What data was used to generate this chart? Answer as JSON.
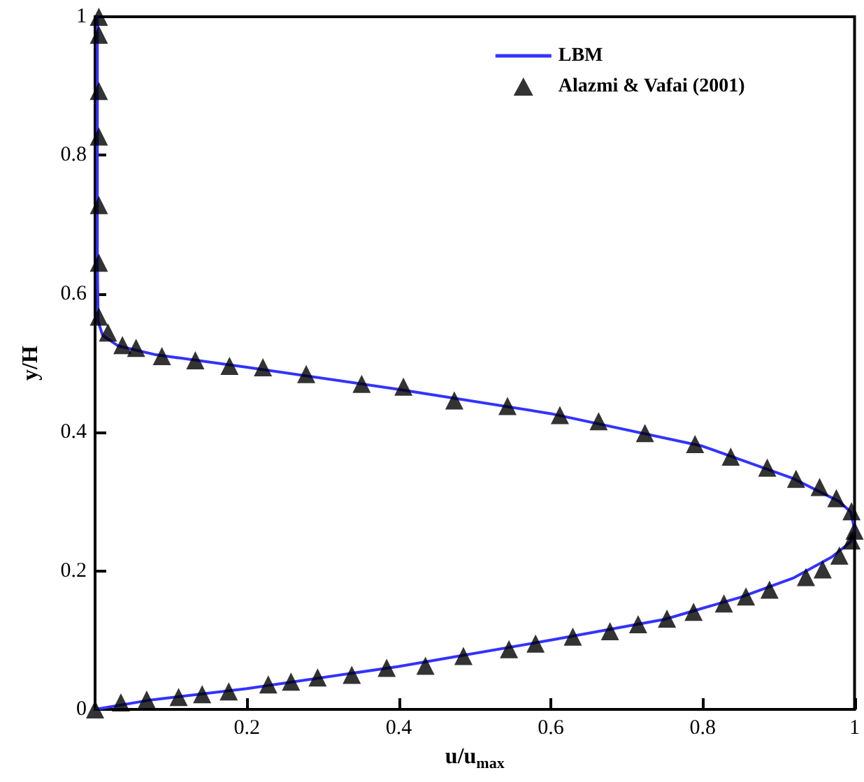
{
  "chart_data": {
    "type": "line",
    "xlabel": "u/u$_{max}$",
    "ylabel": "y/H",
    "xlim": [
      0,
      1
    ],
    "ylim": [
      0,
      1
    ],
    "xticks": [
      {
        "value": 0,
        "label": null
      },
      0.2,
      0.4,
      0.6,
      0.8,
      1
    ],
    "yticks": [
      0,
      0.2,
      0.4,
      0.6,
      0.8,
      1
    ],
    "grid": false,
    "legend": "top right",
    "series": [
      {
        "name": "LBM",
        "color": "#3333ff",
        "line_style": "solid",
        "marker": "none",
        "x": [
          0,
          0.07,
          0.2,
          0.4,
          0.6,
          0.75,
          0.85,
          0.92,
          0.97,
          0.995,
          1.0,
          0.995,
          0.98,
          0.92,
          0.8,
          0.6,
          0.4,
          0.2,
          0.08,
          0.03,
          0.01,
          0.004,
          0.003,
          0.003,
          0.003
        ],
        "values": [
          0,
          0.013,
          0.03,
          0.062,
          0.1,
          0.13,
          0.162,
          0.19,
          0.22,
          0.242,
          0.26,
          0.285,
          0.3,
          0.333,
          0.38,
          0.427,
          0.462,
          0.494,
          0.512,
          0.525,
          0.54,
          0.56,
          0.65,
          0.8,
          1.0
        ]
      },
      {
        "name": "Alazmi & Vafai (2001)",
        "type": "scatter",
        "color": "#000000",
        "marker": "triangle",
        "x": [
          0.005,
          0.005,
          0.005,
          0.005,
          0.005,
          0.005,
          0.005,
          0.017,
          0.036,
          0.054,
          0.088,
          0.132,
          0.177,
          0.221,
          0.278,
          0.351,
          0.406,
          0.473,
          0.543,
          0.612,
          0.663,
          0.724,
          0.79,
          0.837,
          0.885,
          0.923,
          0.954,
          0.976,
          0.996,
          1.0,
          0.996,
          0.98,
          0.958,
          0.936,
          0.888,
          0.857,
          0.828,
          0.788,
          0.753,
          0.715,
          0.678,
          0.629,
          0.58,
          0.545,
          0.485,
          0.435,
          0.384,
          0.338,
          0.293,
          0.258,
          0.228,
          0.176,
          0.141,
          0.11,
          0.068,
          0.034,
          0.0
        ],
        "values": [
          1.0,
          0.974,
          0.893,
          0.827,
          0.728,
          0.645,
          0.567,
          0.544,
          0.526,
          0.522,
          0.51,
          0.504,
          0.496,
          0.494,
          0.484,
          0.47,
          0.466,
          0.446,
          0.438,
          0.425,
          0.416,
          0.399,
          0.383,
          0.365,
          0.349,
          0.333,
          0.321,
          0.305,
          0.286,
          0.258,
          0.244,
          0.222,
          0.202,
          0.191,
          0.173,
          0.163,
          0.153,
          0.141,
          0.131,
          0.123,
          0.113,
          0.105,
          0.095,
          0.087,
          0.077,
          0.063,
          0.06,
          0.05,
          0.046,
          0.04,
          0.036,
          0.026,
          0.022,
          0.018,
          0.014,
          0.01,
          0.0
        ]
      }
    ]
  }
}
